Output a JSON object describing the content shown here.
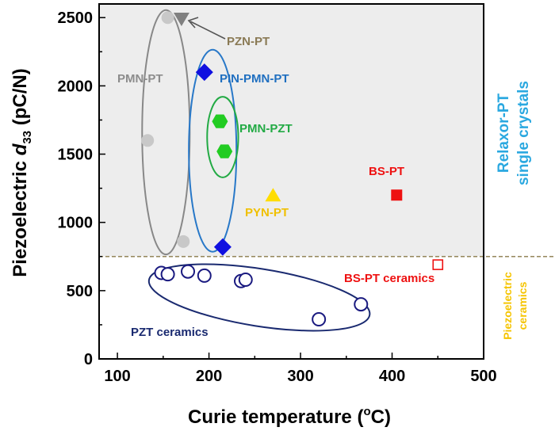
{
  "chart_data": {
    "type": "scatter",
    "xlabel_main": "Curie temperature (",
    "xlabel_sup": "o",
    "xlabel_tail": "C)",
    "ylabel_main": "Piezoelectric ",
    "ylabel_italic": "d",
    "ylabel_sub": "33",
    "ylabel_tail": " (pC/N)",
    "xlim": [
      80,
      500
    ],
    "ylim": [
      0,
      2600
    ],
    "xticks": [
      100,
      200,
      300,
      400,
      500
    ],
    "yticks": [
      0,
      500,
      1000,
      1500,
      2000,
      2500
    ],
    "threshold_y": 750,
    "side_label_upper": [
      "Relaxor-PT",
      "single crystals"
    ],
    "side_label_lower": [
      "Piezoelectric",
      "ceramics"
    ],
    "series": [
      {
        "name": "PMN-PT",
        "marker": "circle-filled",
        "color": "#c8c8c8",
        "points": [
          [
            155,
            2500
          ],
          [
            133,
            1600
          ],
          [
            172,
            860
          ]
        ]
      },
      {
        "name": "PZN-PT",
        "marker": "triangle-down",
        "color": "#808080",
        "points": [
          [
            170,
            2490
          ]
        ]
      },
      {
        "name": "PIN-PMN-PT",
        "marker": "diamond",
        "color": "#1010e0",
        "points": [
          [
            195,
            2100
          ],
          [
            215,
            820
          ]
        ]
      },
      {
        "name": "PMN-PZT",
        "marker": "hexagon",
        "color": "#22cc22",
        "points": [
          [
            212,
            1740
          ],
          [
            217,
            1520
          ]
        ]
      },
      {
        "name": "PYN-PT",
        "marker": "triangle-up",
        "color": "#ffdd00",
        "points": [
          [
            270,
            1200
          ]
        ]
      },
      {
        "name": "BS-PT",
        "marker": "square-filled",
        "color": "#ee1111",
        "points": [
          [
            405,
            1200
          ]
        ]
      },
      {
        "name": "BS-PT ceramics",
        "marker": "square-open",
        "color": "#ee1111",
        "points": [
          [
            450,
            690
          ]
        ]
      },
      {
        "name": "PZT ceramics",
        "marker": "circle-open",
        "color": "#1a1a80",
        "points": [
          [
            148,
            630
          ],
          [
            155,
            620
          ],
          [
            177,
            640
          ],
          [
            195,
            610
          ],
          [
            235,
            570
          ],
          [
            240,
            580
          ],
          [
            320,
            290
          ],
          [
            366,
            400
          ]
        ]
      }
    ],
    "annotations": [
      {
        "text": "PZN-PT",
        "color": "#8a7a55"
      },
      {
        "text": "PMN-PT",
        "color": "#8c8c8c"
      },
      {
        "text": "PIN-PMN-PT",
        "color": "#1f6fc0"
      },
      {
        "text": "PMN-PZT",
        "color": "#22aa44"
      },
      {
        "text": "PYN-PT",
        "color": "#f0c000"
      },
      {
        "text": "BS-PT",
        "color": "#ee1111"
      },
      {
        "text": "BS-PT ceramics",
        "color": "#ee1111"
      },
      {
        "text": "PZT ceramics",
        "color": "#1a2a70"
      }
    ],
    "colors": {
      "upper_region": "#ededed",
      "threshold_line": "#8a7a4a",
      "relaxor_label": "#2aa8e0",
      "ceramics_label": "#f5c400",
      "ellipse_pmn": "#888888",
      "ellipse_pin": "#2878c8",
      "ellipse_pmnpzt": "#22aa44",
      "ellipse_pzt": "#1a2a70"
    }
  }
}
